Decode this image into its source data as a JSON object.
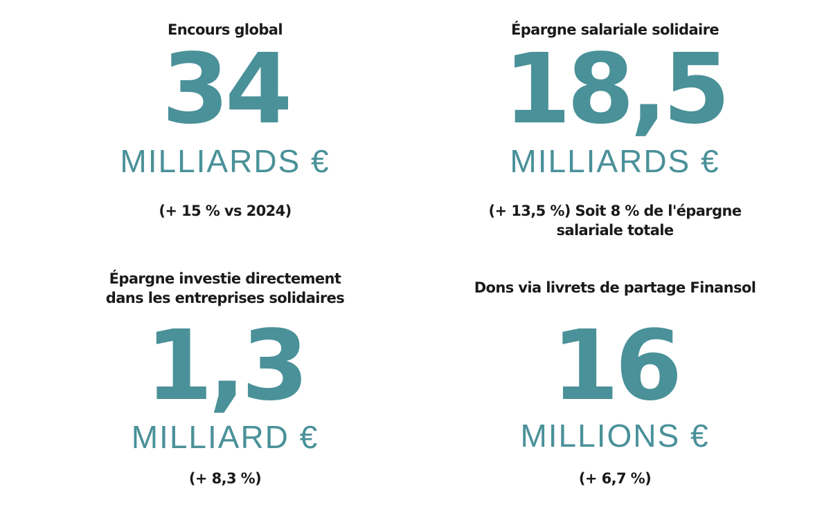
{
  "blocks": [
    {
      "title": [
        "Encours global"
      ],
      "figure": "34",
      "unit": "MILLIARDS €",
      "note": [
        "(+ 15 % vs 2024)"
      ]
    },
    {
      "title": [
        "Épargne salariale solidaire"
      ],
      "figure": "18,5",
      "unit": "MILLIARDS €",
      "note": [
        "(+ 13,5 %) Soit 8 % de l'épargne",
        "salariale totale"
      ]
    },
    {
      "title": [
        "Épargne investie directement",
        "dans les entreprises solidaires"
      ],
      "figure": "1,3",
      "unit": "MILLIARD €",
      "note": [
        "(+ 8,3 %)"
      ]
    },
    {
      "title": [
        "Dons via livrets de partage Finansol"
      ],
      "figure": "16",
      "unit": "MILLIONS €",
      "note": [
        "(+ 6,7 %)"
      ]
    }
  ]
}
